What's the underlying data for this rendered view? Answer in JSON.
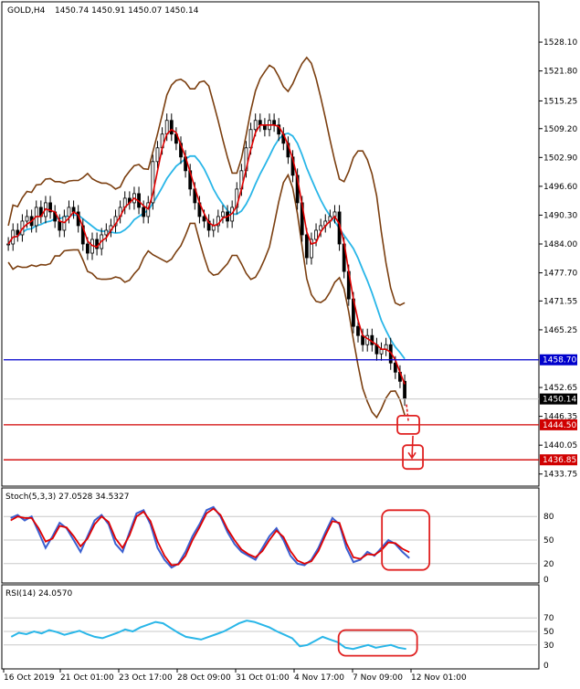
{
  "header": {
    "symbol": "GOLD,H4",
    "ohlc": "1450.74 1450.91 1450.07 1450.14"
  },
  "chart_data": [
    {
      "type": "candlestick",
      "title": "GOLD,H4",
      "ylim": [
        1431.5,
        1536.5
      ],
      "yticks": [
        "1528.10",
        "1521.80",
        "1515.25",
        "1509.20",
        "1502.90",
        "1496.60",
        "1490.30",
        "1484.00",
        "1477.70",
        "1471.55",
        "1465.25",
        "1452.65",
        "1446.35",
        "1440.05",
        "1433.75"
      ],
      "ytick_values": [
        1528.1,
        1521.8,
        1515.25,
        1509.2,
        1502.9,
        1496.6,
        1490.3,
        1484.0,
        1477.7,
        1471.55,
        1465.25,
        1452.65,
        1446.35,
        1440.05,
        1433.75
      ],
      "close": [
        1484,
        1487,
        1486,
        1489,
        1490,
        1488,
        1492,
        1490,
        1493,
        1491,
        1489,
        1487,
        1490,
        1492,
        1491,
        1488,
        1484,
        1482,
        1485,
        1483,
        1486,
        1487,
        1488,
        1490,
        1492,
        1494,
        1493,
        1495,
        1492,
        1490,
        1493,
        1502,
        1505,
        1508,
        1511,
        1508,
        1506,
        1503,
        1500,
        1496,
        1493,
        1490,
        1489,
        1487,
        1488,
        1490,
        1491,
        1489,
        1492,
        1496,
        1500,
        1505,
        1509,
        1511,
        1510,
        1509,
        1511,
        1510,
        1508,
        1506,
        1503,
        1499,
        1493,
        1486,
        1481,
        1485,
        1487,
        1488,
        1489,
        1490,
        1491,
        1484,
        1478,
        1472,
        1466,
        1464,
        1462,
        1464,
        1462,
        1460,
        1461,
        1462,
        1458,
        1456,
        1454,
        1450.14
      ],
      "levels": [
        {
          "label": "1458.70",
          "value": 1458.7,
          "color": "#0000cc"
        },
        {
          "label": "1444.50",
          "value": 1444.5,
          "color": "#d00000"
        },
        {
          "label": "1436.85",
          "value": 1436.85,
          "color": "#d00000"
        }
      ],
      "last_price": {
        "label": "1450.14",
        "value": 1450.14
      },
      "indicators": [
        "MA fast (red)",
        "MA slow (skyblue)",
        "Bollinger Bands (brown)"
      ],
      "colors": {
        "candle": "#000000",
        "ma_fast": "#e00000",
        "ma_slow": "#29b6e8",
        "bands": "#7b3f10",
        "support": "#d00000",
        "resistance": "#0000cc"
      }
    },
    {
      "type": "line",
      "title": "Stoch(5,3,3) 27.0528 34.5327",
      "label": "Stoch(5,3,3)",
      "value1": "27.0528",
      "value2": "34.5327",
      "ylim": [
        0,
        100
      ],
      "yticks": [
        "80",
        "50",
        "20",
        "0"
      ],
      "ytick_values": [
        80,
        50,
        20,
        0
      ],
      "main": [
        78,
        82,
        75,
        80,
        60,
        40,
        55,
        72,
        65,
        50,
        35,
        55,
        75,
        82,
        70,
        45,
        35,
        60,
        84,
        88,
        70,
        40,
        25,
        15,
        20,
        35,
        55,
        70,
        88,
        92,
        80,
        60,
        45,
        35,
        30,
        25,
        40,
        55,
        65,
        50,
        30,
        20,
        18,
        25,
        40,
        60,
        78,
        70,
        40,
        22,
        25,
        35,
        30,
        40,
        50,
        45,
        35,
        27
      ],
      "signal": [
        75,
        80,
        78,
        78,
        65,
        48,
        52,
        68,
        66,
        55,
        42,
        52,
        70,
        80,
        73,
        52,
        40,
        56,
        80,
        86,
        74,
        48,
        30,
        18,
        19,
        30,
        50,
        66,
        84,
        90,
        82,
        64,
        50,
        38,
        32,
        28,
        36,
        50,
        62,
        54,
        36,
        24,
        20,
        23,
        36,
        56,
        74,
        72,
        46,
        28,
        26,
        32,
        31,
        37,
        47,
        46,
        39,
        34.5
      ],
      "colors": {
        "main": "#3a5fd0",
        "signal": "#e00000"
      }
    },
    {
      "type": "line",
      "title": "RSI(14) 24.0570",
      "label": "RSI(14)",
      "value": "24.0570",
      "ylim": [
        0,
        100
      ],
      "yticks": [
        "70",
        "50",
        "30",
        "0"
      ],
      "ytick_values": [
        70,
        50,
        30,
        0
      ],
      "values": [
        42,
        48,
        46,
        50,
        47,
        52,
        49,
        45,
        48,
        51,
        46,
        42,
        40,
        44,
        48,
        53,
        50,
        56,
        60,
        64,
        62,
        55,
        48,
        42,
        40,
        38,
        42,
        46,
        50,
        56,
        62,
        66,
        64,
        60,
        56,
        50,
        45,
        40,
        28,
        30,
        36,
        42,
        38,
        34,
        26,
        24,
        27,
        30,
        26,
        28,
        30,
        26,
        24
      ],
      "colors": {
        "line": "#29b6e8"
      }
    }
  ],
  "x_labels": [
    "16 Oct 2019",
    "21 Oct 01:00",
    "23 Oct 17:00",
    "28 Oct 09:00",
    "31 Oct 01:00",
    "4 Nov 17:00",
    "7 Nov 09:00",
    "12 Nov 01:00"
  ]
}
